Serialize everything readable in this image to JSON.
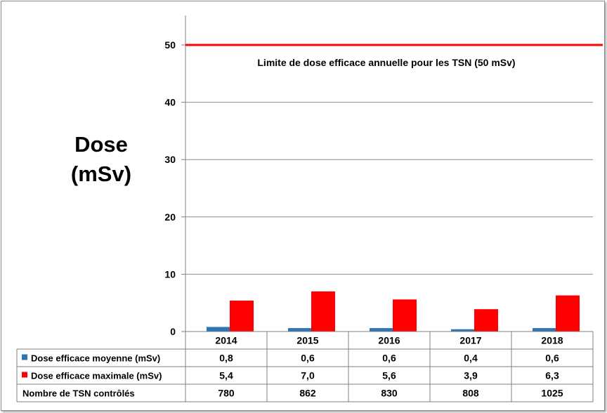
{
  "chart_data": {
    "type": "bar",
    "ylabel_line1": "Dose",
    "ylabel_line2": "(mSv)",
    "ylim": [
      0,
      55
    ],
    "yticks": [
      "0",
      "10",
      "20",
      "30",
      "40",
      "50"
    ],
    "ytick_values": [
      0,
      10,
      20,
      30,
      40,
      50
    ],
    "categories": [
      "2014",
      "2015",
      "2016",
      "2017",
      "2018"
    ],
    "grid": true,
    "limit_line": {
      "value": 50,
      "label": "Limite de dose efficace annuelle pour les TSN (50 mSv)",
      "color": "#ff0000"
    },
    "series": [
      {
        "name": "Dose efficace moyenne (mSv)",
        "color": "#2e75b6",
        "values": [
          0.8,
          0.6,
          0.6,
          0.4,
          0.6
        ],
        "labels": [
          "0,8",
          "0,6",
          "0,6",
          "0,4",
          "0,6"
        ]
      },
      {
        "name": "Dose efficace maximale (mSv)",
        "color": "#ff0000",
        "values": [
          5.4,
          7.0,
          5.6,
          3.9,
          6.3
        ],
        "labels": [
          "5,4",
          "7,0",
          "5,6",
          "3,9",
          "6,3"
        ]
      }
    ],
    "table_extra_row": {
      "name": "Nombre de TSN contrôlés",
      "values": [
        "780",
        "862",
        "830",
        "808",
        "1025"
      ]
    }
  }
}
